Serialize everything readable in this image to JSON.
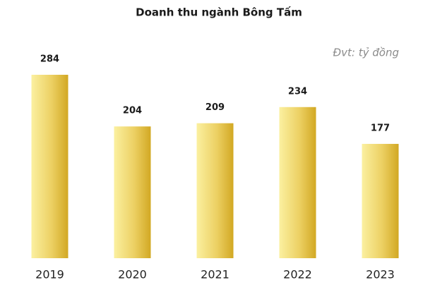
{
  "chart_data": {
    "type": "bar",
    "title": "Doanh thu ngành Bông Tấm",
    "subtitle": "Đvt: tỷ đồng",
    "categories": [
      "2019",
      "2020",
      "2021",
      "2022",
      "2023"
    ],
    "values": [
      284,
      204,
      209,
      234,
      177
    ]
  }
}
